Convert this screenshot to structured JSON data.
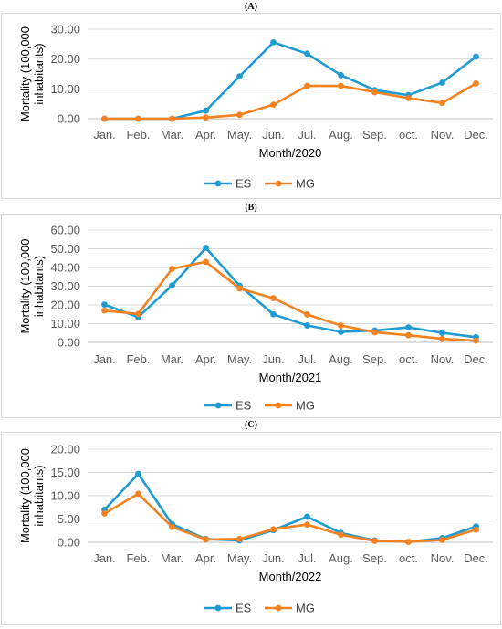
{
  "colors": {
    "ES": "#1f9bd1",
    "MG": "#f58220",
    "grid": "#d9d9d9",
    "axis": "#bfbfbf"
  },
  "chart_data": [
    {
      "panel_label": "(A)",
      "type": "line",
      "categories": [
        "Jan.",
        "Feb.",
        "Mar.",
        "Apr.",
        "May.",
        "Jun.",
        "Jul.",
        "Aug.",
        "Sep.",
        "oct.",
        "Nov.",
        "Dec."
      ],
      "ylim": [
        0,
        30
      ],
      "yticks": [
        "0.00",
        "10.00",
        "20.00",
        "30.00"
      ],
      "ytick_values": [
        0,
        10,
        20,
        30
      ],
      "xlabel": "Month/2020",
      "ylabel_line1": "Mortality (100,000",
      "ylabel_line2": "inhabitants)",
      "legend": "bottom",
      "series": [
        {
          "name": "ES",
          "values": [
            0,
            0,
            0,
            2.7,
            14.2,
            25.6,
            21.8,
            14.6,
            9.6,
            7.9,
            12.1,
            20.8
          ]
        },
        {
          "name": "MG",
          "values": [
            0,
            0,
            0,
            0.4,
            1.3,
            4.7,
            11.0,
            11.0,
            8.9,
            6.9,
            5.3,
            11.8
          ]
        }
      ]
    },
    {
      "panel_label": "(B)",
      "type": "line",
      "categories": [
        "Jan.",
        "Feb.",
        "Mar.",
        "Apr.",
        "May.",
        "Jun.",
        "Jul.",
        "Aug.",
        "Sep.",
        "oct.",
        "Nov.",
        "Dec."
      ],
      "ylim": [
        0,
        60
      ],
      "yticks": [
        "0.00",
        "10.00",
        "20.00",
        "30.00",
        "40.00",
        "50.00",
        "60.00"
      ],
      "ytick_values": [
        0,
        10,
        20,
        30,
        40,
        50,
        60
      ],
      "xlabel": "Month/2021",
      "ylabel_line1": "Mortality (100,000",
      "ylabel_line2": "inhabitants)",
      "legend": "bottom",
      "series": [
        {
          "name": "ES",
          "values": [
            20.2,
            13.5,
            30.4,
            50.5,
            30.3,
            15.0,
            9.0,
            5.6,
            6.3,
            8.0,
            5.1,
            2.8
          ]
        },
        {
          "name": "MG",
          "values": [
            17.0,
            15.2,
            39.3,
            43.0,
            28.8,
            23.6,
            14.9,
            9.0,
            5.4,
            3.8,
            1.9,
            0.9
          ]
        }
      ]
    },
    {
      "panel_label": "(C)",
      "type": "line",
      "categories": [
        "Jan.",
        "Feb.",
        "Mar.",
        "Apr.",
        "May.",
        "Jun.",
        "Jul.",
        "Aug.",
        "Sep.",
        "oct.",
        "Nov.",
        "Dec."
      ],
      "ylim": [
        0,
        20
      ],
      "yticks": [
        "0.00",
        "5.00",
        "10.00",
        "15.00",
        "20.00"
      ],
      "ytick_values": [
        0,
        5,
        10,
        15,
        20
      ],
      "xlabel": "Month/2022",
      "ylabel_line1": "Mortality (100,000",
      "ylabel_line2": "inhabitants)",
      "legend": "bottom",
      "series": [
        {
          "name": "ES",
          "values": [
            7.0,
            14.7,
            3.9,
            0.7,
            0.4,
            2.6,
            5.5,
            2.0,
            0.4,
            0.1,
            0.9,
            3.4
          ]
        },
        {
          "name": "MG",
          "values": [
            6.2,
            10.4,
            3.3,
            0.6,
            0.7,
            2.8,
            3.8,
            1.6,
            0.3,
            0.1,
            0.5,
            2.7
          ]
        }
      ]
    }
  ]
}
